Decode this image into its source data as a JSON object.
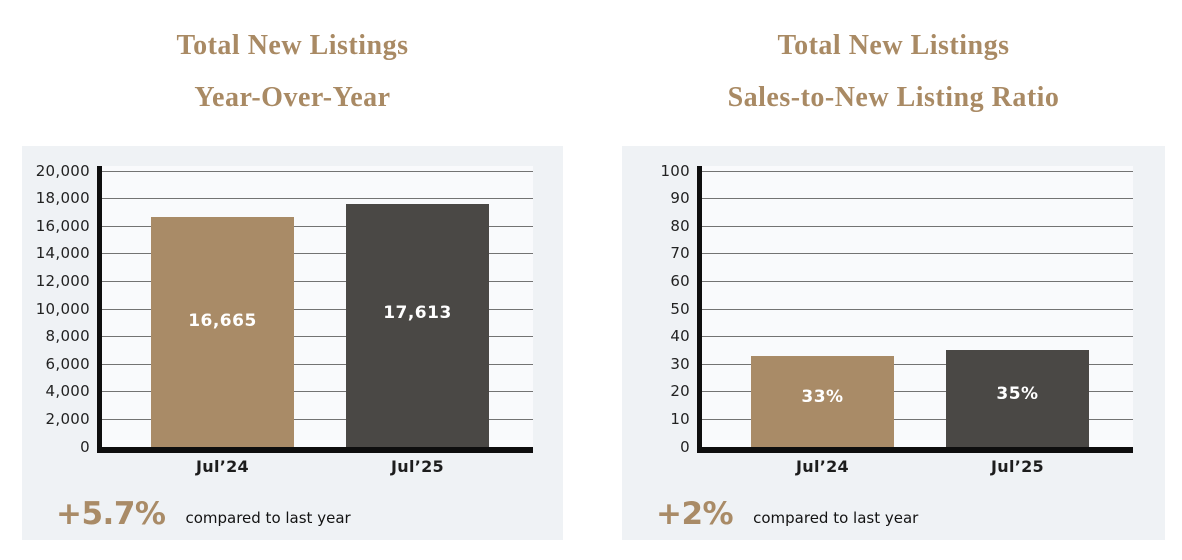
{
  "colors": {
    "accent_tan": "#a98b67",
    "bar_dark": "#4a4845",
    "title_tan": "#a98a64",
    "panel_bg": "#eff2f5",
    "plot_bg": "#f9fafc",
    "gridline": "#737373",
    "axis": "#0e0e0e",
    "value_label": "#ffffff"
  },
  "chart_data": [
    {
      "type": "bar",
      "title_lines": [
        "Total New Listings",
        "Year-Over-Year"
      ],
      "categories": [
        "Jul’24",
        "Jul’25"
      ],
      "values": [
        16665,
        17613
      ],
      "value_labels": [
        "16,665",
        "17,613"
      ],
      "bar_colors": [
        "#a98b67",
        "#4a4845"
      ],
      "ylabel": "",
      "xlabel": "",
      "ylim": [
        0,
        20000
      ],
      "ytick_step": 2000,
      "ytick_labels": [
        "0",
        "2,000",
        "4,000",
        "6,000",
        "8,000",
        "10,000",
        "12,000",
        "14,000",
        "16,000",
        "18,000",
        "20,000"
      ],
      "grid": true,
      "legend": "none",
      "footer": {
        "delta": "+5.7%",
        "caption": "compared to last year"
      }
    },
    {
      "type": "bar",
      "title_lines": [
        "Total New Listings",
        "Sales-to-New Listing Ratio"
      ],
      "categories": [
        "Jul’24",
        "Jul’25"
      ],
      "values": [
        33,
        35
      ],
      "value_labels": [
        "33%",
        "35%"
      ],
      "bar_colors": [
        "#a98b67",
        "#4a4845"
      ],
      "ylabel": "",
      "xlabel": "",
      "ylim": [
        0,
        100
      ],
      "ytick_step": 10,
      "ytick_labels": [
        "0",
        "10",
        "20",
        "30",
        "40",
        "50",
        "60",
        "70",
        "80",
        "90",
        "100"
      ],
      "grid": true,
      "legend": "none",
      "footer": {
        "delta": "+2%",
        "caption": "compared to last year"
      }
    }
  ]
}
